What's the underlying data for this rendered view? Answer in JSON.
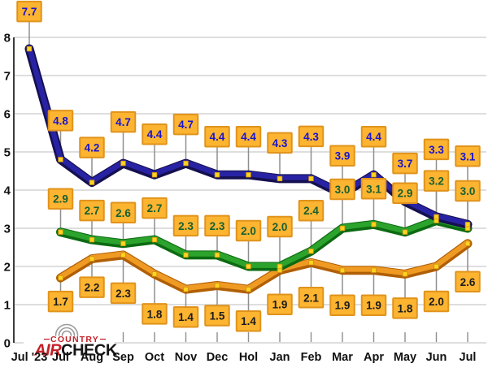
{
  "chart_data": {
    "type": "line",
    "title": "",
    "x_labels": [
      "Jul '23",
      "Jul",
      "Aug",
      "Sep",
      "Oct",
      "Nov",
      "Dec",
      "Hol",
      "Jan",
      "Feb",
      "Mar",
      "Apr",
      "May",
      "Jun",
      "Jul"
    ],
    "ylim": [
      0,
      8
    ],
    "yticks": [
      0,
      1,
      2,
      3,
      4,
      5,
      6,
      7,
      8
    ],
    "grid": true,
    "legend": "none",
    "series": [
      {
        "name": "navy-series",
        "values": [
          7.7,
          4.8,
          4.2,
          4.7,
          4.4,
          4.7,
          4.4,
          4.4,
          4.3,
          4.3,
          3.9,
          4.4,
          3.7,
          3.3,
          3.1
        ],
        "start_index": 0,
        "label_side": "above",
        "label_dy": [
          -46,
          -48,
          -43,
          -51,
          -50,
          -48,
          -47,
          -47,
          -44,
          -52,
          -47,
          -47,
          -47,
          -83,
          -84
        ],
        "line_core": "#2823a4",
        "line_edge": "#15104f",
        "text_color": "#1a14cf"
      },
      {
        "name": "green-series",
        "values": [
          2.9,
          2.7,
          2.6,
          2.7,
          2.3,
          2.3,
          2.0,
          2.0,
          2.4,
          3.0,
          3.1,
          2.9,
          3.2,
          3.0
        ],
        "start_index": 1,
        "label_side": "above",
        "label_dy": [
          -41,
          -36,
          -38,
          -39,
          -36,
          -36,
          -44,
          -49,
          -50,
          -48,
          -44,
          -48,
          -49,
          -46
        ],
        "line_core": "#2ca32c",
        "line_edge": "#0c6b12",
        "text_color": "#156030"
      },
      {
        "name": "orange-series",
        "values": [
          1.7,
          2.2,
          2.3,
          1.8,
          1.4,
          1.5,
          1.4,
          1.9,
          2.1,
          1.9,
          1.9,
          1.8,
          2.0,
          2.6
        ],
        "start_index": 1,
        "label_side": "below",
        "label_dy": [
          29,
          35,
          47,
          49,
          34,
          37,
          39,
          42,
          43,
          43,
          43,
          42,
          43,
          47
        ],
        "line_core": "#ef9a23",
        "line_edge": "#b05f06",
        "text_color": "#1c1c1c"
      }
    ],
    "label_box": {
      "fill": "#fcb431",
      "stroke": "#e0931c"
    },
    "marker_color": "#ffd41f",
    "marker_stroke": "#cf9212",
    "leader_color": "#8f8f8f",
    "grid_color": "#c9c9c9",
    "axis_color": "#3c3c3c",
    "tick_color": "#8f8f8f",
    "axis_text_color": "#111111"
  },
  "logo": {
    "wordmark_top": "COUNTRY",
    "wordmark_air": "AIR",
    "wordmark_check": "CHECK",
    "color_red": "#c22026",
    "color_black": "#161616",
    "waves_color": "#9b9b9b"
  }
}
